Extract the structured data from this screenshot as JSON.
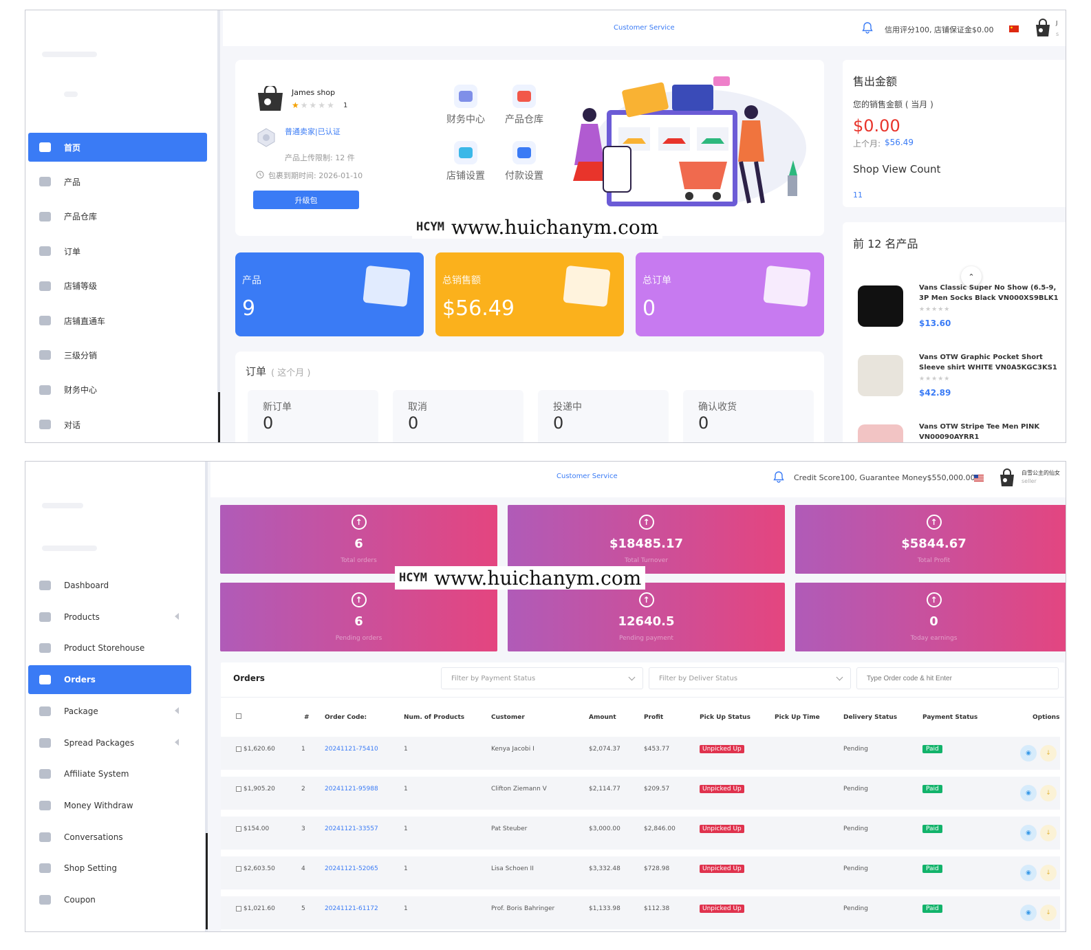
{
  "top": {
    "sidebar": [
      {
        "label": "首页",
        "icon": "home-icon",
        "active": true
      },
      {
        "label": "产品",
        "icon": "bag-icon"
      },
      {
        "label": "产品仓库",
        "icon": "storehouse-icon"
      },
      {
        "label": "订单",
        "icon": "orders-icon"
      },
      {
        "label": "店铺等级",
        "icon": "diamond-icon"
      },
      {
        "label": "店铺直通车",
        "icon": "ticket-icon"
      },
      {
        "label": "三级分销",
        "icon": "hierarchy-icon"
      },
      {
        "label": "财务中心",
        "icon": "wallet-icon"
      },
      {
        "label": "对话",
        "icon": "chat-icon"
      }
    ],
    "header": {
      "customer_service": "Customer Service",
      "credit": "信用评分100, 店铺保证金$0.00",
      "user_initial": "J",
      "user_sub": "s"
    },
    "shop": {
      "name": "James shop",
      "rating": "1",
      "seller_level": "普通卖家|已认证",
      "upload_limit": "产品上传限制: 12 件",
      "package_expiry": "包裹到期时间: 2026-01-10",
      "upgrade_button": "升级包"
    },
    "quick_links": [
      {
        "label": "财务中心",
        "icon": "wallet-icon",
        "color": "#7f8fe8"
      },
      {
        "label": "产品仓库",
        "icon": "shopping-bag-icon",
        "color": "#f2584a"
      },
      {
        "label": "店铺设置",
        "icon": "store-icon",
        "color": "#3bb8e8"
      },
      {
        "label": "付款设置",
        "icon": "card-icon",
        "color": "#3a7bf5"
      }
    ],
    "stats": [
      {
        "label": "产品",
        "value": "9",
        "color": "#3a7bf5"
      },
      {
        "label": "总销售额",
        "value": "$56.49",
        "color": "#fbb11c"
      },
      {
        "label": "总订单",
        "value": "0",
        "color": "#c77af0"
      }
    ],
    "orders_month": {
      "title": "订单",
      "subtitle": "( 这个月 )",
      "boxes": [
        {
          "label": "新订单",
          "value": "0"
        },
        {
          "label": "取消",
          "value": "0"
        },
        {
          "label": "投递中",
          "value": "0"
        },
        {
          "label": "确认收货",
          "value": "0"
        }
      ]
    },
    "sales": {
      "title": "售出金额",
      "month_label": "您的销售金额 ( 当月 )",
      "amount": "$0.00",
      "last_month_label": "上个月:",
      "last_month_value": "$56.49",
      "view_title": "Shop View Count",
      "view_count": "11"
    },
    "top_products": {
      "title": "前 12 名产品",
      "items": [
        {
          "name": "Vans Classic Super No Show (6.5-9, 3P Men Socks Black VN000XS9BLK1",
          "price": "$13.60"
        },
        {
          "name": "Vans OTW Graphic Pocket Short Sleeve shirt WHITE VN0A5KGC3KS1",
          "price": "$42.89"
        },
        {
          "name": "Vans OTW Stripe Tee Men PINK VN00090AYRR1",
          "price": ""
        }
      ]
    },
    "watermark": {
      "brand": "HCYM",
      "url": "www.huichanym.com"
    }
  },
  "bottom": {
    "sidebar": [
      {
        "label": "Dashboard",
        "icon": "home-icon"
      },
      {
        "label": "Products",
        "icon": "bag-icon",
        "caret": true
      },
      {
        "label": "Product Storehouse",
        "icon": "storehouse-icon"
      },
      {
        "label": "Orders",
        "icon": "orders-icon",
        "active": true
      },
      {
        "label": "Package",
        "icon": "diamond-icon",
        "caret": true
      },
      {
        "label": "Spread Packages",
        "icon": "ticket-icon",
        "caret": true
      },
      {
        "label": "Affiliate System",
        "icon": "hierarchy-icon"
      },
      {
        "label": "Money Withdraw",
        "icon": "wallet-icon"
      },
      {
        "label": "Conversations",
        "icon": "chat-icon"
      },
      {
        "label": "Shop Setting",
        "icon": "gear-icon"
      },
      {
        "label": "Coupon",
        "icon": "coupon-icon"
      }
    ],
    "header": {
      "customer_service": "Customer Service",
      "credit": "Credit Score100, Guarantee Money$550,000.00",
      "user_name": "白雪公主的仙女",
      "user_role": "seller"
    },
    "kpis": [
      {
        "value": "6",
        "label": "Total orders"
      },
      {
        "value": "$18485.17",
        "label": "Total Turnover"
      },
      {
        "value": "$5844.67",
        "label": "Total Profit"
      },
      {
        "value": "6",
        "label": "Pending orders"
      },
      {
        "value": "12640.5",
        "label": "Pending payment"
      },
      {
        "value": "0",
        "label": "Today earnings"
      }
    ],
    "orders": {
      "title": "Orders",
      "filter_payment": "Filter by Payment Status",
      "filter_delivery": "Filter by Deliver Status",
      "search_placeholder": "Type Order code & hit Enter",
      "columns": [
        "#",
        "Order Code:",
        "Num. of Products",
        "Customer",
        "Amount",
        "Profit",
        "Pick Up Status",
        "Pick Up Time",
        "Delivery Status",
        "Payment Status",
        "Options"
      ],
      "rows": [
        {
          "sel": "$1,620.60",
          "n": "1",
          "code": "20241121-75410",
          "qty": "1",
          "customer": "Kenya Jacobi I",
          "amount": "$2,074.37",
          "profit": "$453.77",
          "pickup": "Unpicked Up",
          "delivery": "Pending",
          "payment": "Paid"
        },
        {
          "sel": "$1,905.20",
          "n": "2",
          "code": "20241121-95988",
          "qty": "1",
          "customer": "Clifton Ziemann V",
          "amount": "$2,114.77",
          "profit": "$209.57",
          "pickup": "Unpicked Up",
          "delivery": "Pending",
          "payment": "Paid"
        },
        {
          "sel": "$154.00",
          "n": "3",
          "code": "20241121-33557",
          "qty": "1",
          "customer": "Pat Steuber",
          "amount": "$3,000.00",
          "profit": "$2,846.00",
          "pickup": "Unpicked Up",
          "delivery": "Pending",
          "payment": "Paid"
        },
        {
          "sel": "$2,603.50",
          "n": "4",
          "code": "20241121-52065",
          "qty": "1",
          "customer": "Lisa Schoen II",
          "amount": "$3,332.48",
          "profit": "$728.98",
          "pickup": "Unpicked Up",
          "delivery": "Pending",
          "payment": "Paid"
        },
        {
          "sel": "$1,021.60",
          "n": "5",
          "code": "20241121-61172",
          "qty": "1",
          "customer": "Prof. Boris Bahringer",
          "amount": "$1,133.98",
          "profit": "$112.38",
          "pickup": "Unpicked Up",
          "delivery": "Pending",
          "payment": "Paid"
        }
      ]
    },
    "watermark": {
      "brand": "HCYM",
      "url": "www.huichanym.com"
    }
  }
}
